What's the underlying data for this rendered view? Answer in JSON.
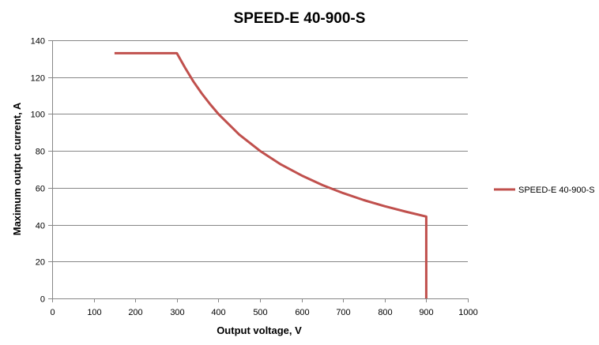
{
  "chart_data": {
    "type": "line",
    "title": "SPEED-E 40-900-S",
    "xlabel": "Output voltage, V",
    "ylabel": "Maximum output current, A",
    "xlim": [
      0,
      1000
    ],
    "ylim": [
      0,
      140
    ],
    "x_ticks": [
      0,
      100,
      200,
      300,
      400,
      500,
      600,
      700,
      800,
      900,
      1000
    ],
    "y_ticks": [
      0,
      20,
      40,
      60,
      80,
      100,
      120,
      140
    ],
    "x_tick_labels": [
      "0",
      "100",
      "200",
      "300",
      "400",
      "500",
      "600",
      "700",
      "800",
      "900",
      "1000"
    ],
    "y_tick_labels": [
      "0",
      "20",
      "40",
      "60",
      "80",
      "100",
      "120",
      "140"
    ],
    "grid": "horizontal",
    "legend_position": "right",
    "series": [
      {
        "name": "SPEED-E 40-900-S",
        "color": "#C0504D",
        "x": [
          150,
          300,
          320,
          340,
          360,
          380,
          400,
          450,
          500,
          550,
          600,
          650,
          700,
          750,
          800,
          850,
          900,
          900
        ],
        "y": [
          133,
          133,
          125,
          117.6,
          111.1,
          105.3,
          100,
          88.9,
          80,
          72.7,
          66.7,
          61.5,
          57.1,
          53.3,
          50,
          47.1,
          44.4,
          0
        ]
      }
    ]
  }
}
